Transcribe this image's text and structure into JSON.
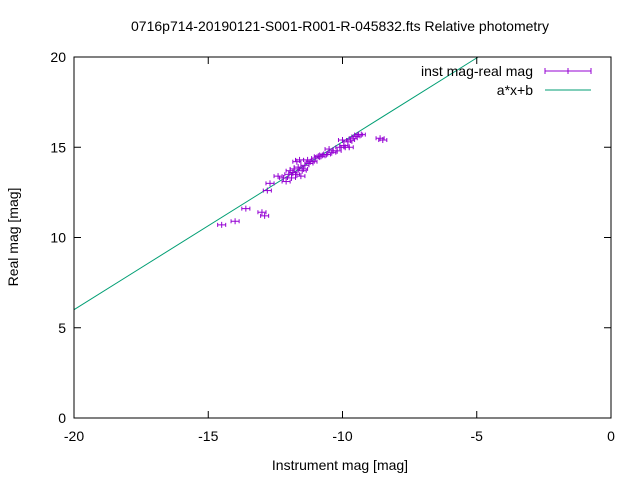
{
  "chart_data": {
    "type": "scatter",
    "title": "0716p714-20190121-S001-R001-R-045832.fts Relative photometry",
    "xlabel": "Instrument mag [mag]",
    "ylabel": "Real mag [mag]",
    "xlim": [
      -20,
      0
    ],
    "ylim": [
      0,
      20
    ],
    "x_ticks": [
      "-20",
      "-15",
      "-10",
      "-5",
      "0"
    ],
    "y_ticks": [
      "0",
      "5",
      "10",
      "15",
      "20"
    ],
    "grid": false,
    "legend_position": "top-right",
    "colors": {
      "points": "#9400d3",
      "fit": "#009e73"
    },
    "series": [
      {
        "name": "inst mag-real mag",
        "kind": "points-with-xerror",
        "x_err": 0.15,
        "points": [
          [
            -14.5,
            10.7
          ],
          [
            -14.0,
            10.9
          ],
          [
            -13.6,
            11.6
          ],
          [
            -13.0,
            11.4
          ],
          [
            -12.9,
            11.2
          ],
          [
            -12.8,
            12.6
          ],
          [
            -12.7,
            13.0
          ],
          [
            -12.4,
            13.4
          ],
          [
            -12.2,
            13.3
          ],
          [
            -12.1,
            13.1
          ],
          [
            -12.0,
            13.5
          ],
          [
            -11.95,
            13.7
          ],
          [
            -11.9,
            13.3
          ],
          [
            -11.85,
            13.6
          ],
          [
            -11.8,
            13.8
          ],
          [
            -11.75,
            13.5
          ],
          [
            -11.7,
            14.2
          ],
          [
            -11.65,
            13.9
          ],
          [
            -11.6,
            14.3
          ],
          [
            -11.55,
            13.4
          ],
          [
            -11.5,
            13.7
          ],
          [
            -11.45,
            13.8
          ],
          [
            -11.4,
            14.0
          ],
          [
            -11.3,
            14.3
          ],
          [
            -11.25,
            14.1
          ],
          [
            -11.2,
            14.2
          ],
          [
            -11.1,
            14.2
          ],
          [
            -11.0,
            14.4
          ],
          [
            -10.9,
            14.5
          ],
          [
            -10.8,
            14.5
          ],
          [
            -10.7,
            14.6
          ],
          [
            -10.6,
            14.6
          ],
          [
            -10.5,
            14.9
          ],
          [
            -10.4,
            14.7
          ],
          [
            -10.35,
            14.8
          ],
          [
            -10.2,
            14.8
          ],
          [
            -10.1,
            15.0
          ],
          [
            -10.0,
            15.4
          ],
          [
            -9.95,
            15.1
          ],
          [
            -9.9,
            15.0
          ],
          [
            -9.8,
            15.3
          ],
          [
            -9.75,
            15.0
          ],
          [
            -9.7,
            15.4
          ],
          [
            -9.6,
            15.5
          ],
          [
            -9.5,
            15.6
          ],
          [
            -9.4,
            15.7
          ],
          [
            -9.3,
            15.7
          ],
          [
            -8.6,
            15.5
          ],
          [
            -8.5,
            15.4
          ]
        ]
      },
      {
        "name": "a*x+b",
        "kind": "line",
        "slope": 0.93,
        "intercept": 24.6
      }
    ]
  }
}
